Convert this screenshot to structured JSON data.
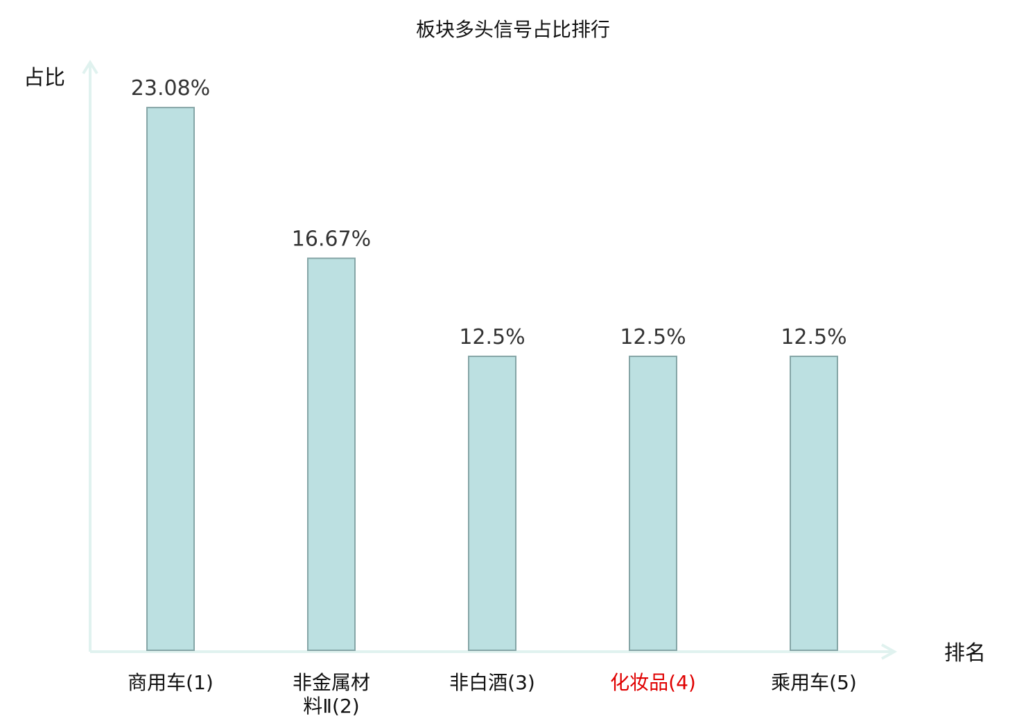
{
  "chart_data": {
    "type": "bar",
    "title": "板块多头信号占比排行",
    "xlabel": "排名",
    "ylabel": "占比",
    "ylim": [
      0,
      25
    ],
    "categories": [
      [
        "商用车(1)"
      ],
      [
        "非金属材",
        "料Ⅱ(2)"
      ],
      [
        "非白酒(3)"
      ],
      [
        "化妆品(4)"
      ],
      [
        "乘用车(5)"
      ]
    ],
    "values": [
      23.08,
      16.67,
      12.5,
      12.5,
      12.5
    ],
    "value_labels": [
      "23.08%",
      "16.67%",
      "12.5%",
      "12.5%",
      "12.5%"
    ],
    "highlight_index": 3,
    "grid": false,
    "legend": "none"
  },
  "colors": {
    "bar_fill": "#bce0e1",
    "bar_stroke": "#85a5a6",
    "axis": "#e0f2ef",
    "label": "#111111",
    "value_label": "#333333",
    "highlight": "#e00000"
  }
}
